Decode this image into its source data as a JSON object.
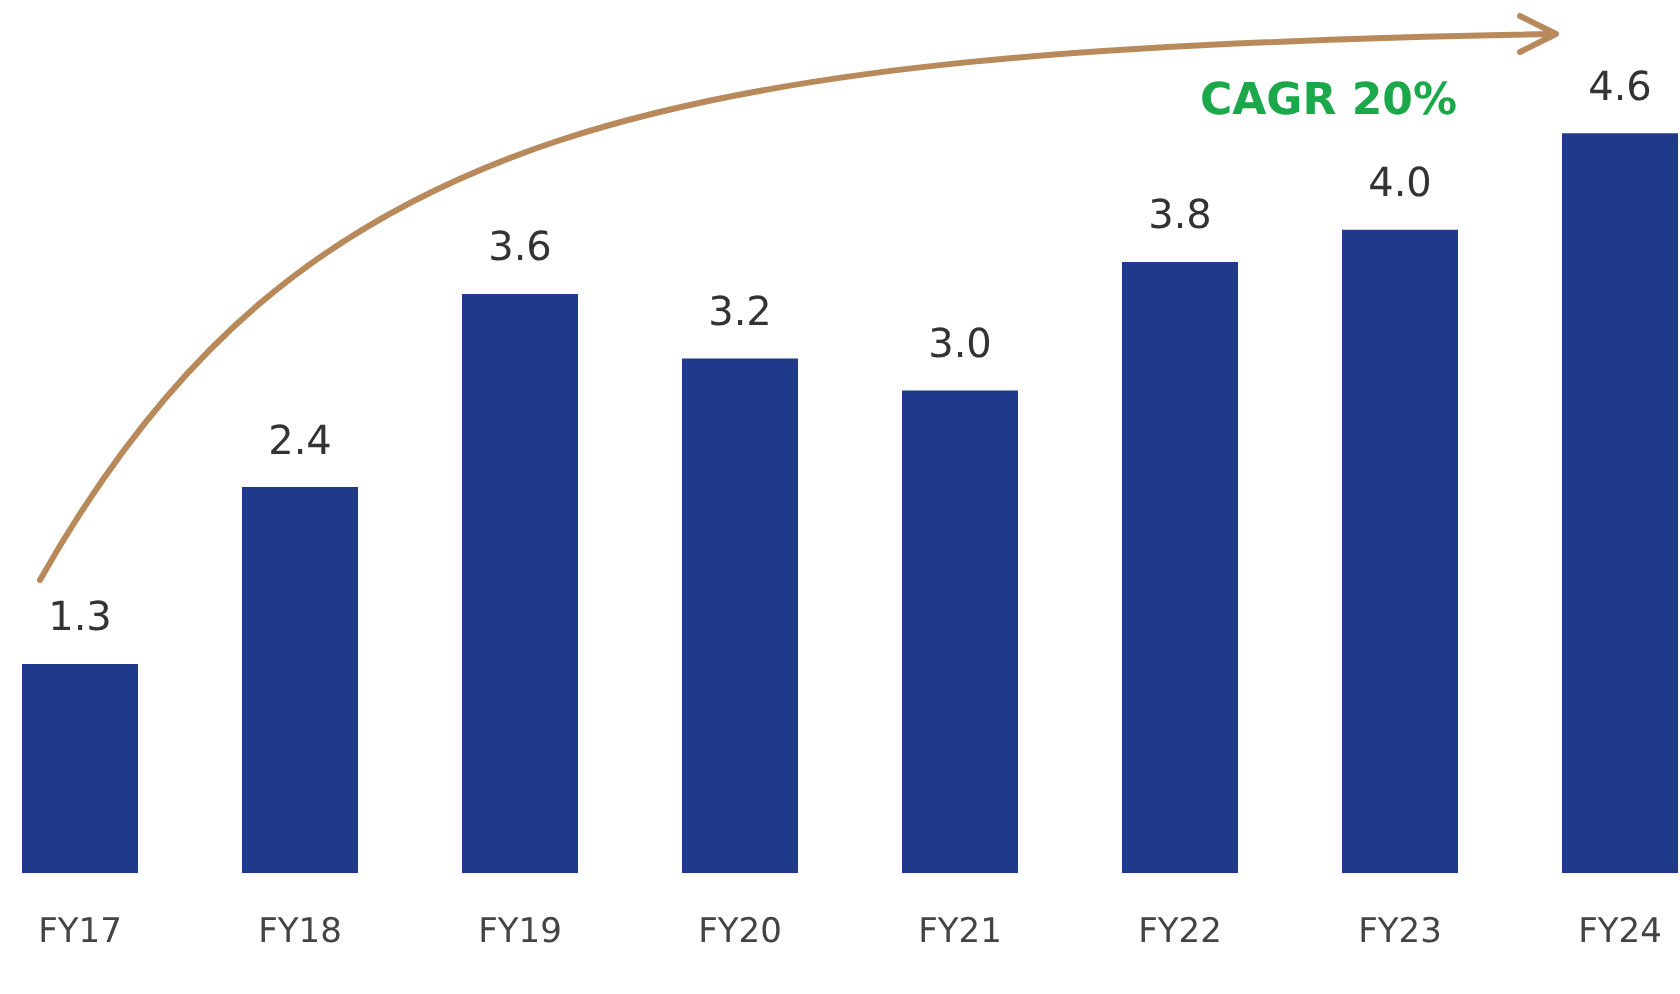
{
  "chart_data": {
    "type": "bar",
    "categories": [
      "FY17",
      "FY18",
      "FY19",
      "FY20",
      "FY21",
      "FY22",
      "FY23",
      "FY24"
    ],
    "values": [
      1.3,
      2.4,
      3.6,
      3.2,
      3.0,
      3.8,
      4.0,
      4.6
    ],
    "color": "#1f3a8a",
    "value_labels": [
      "1.3",
      "2.4",
      "3.6",
      "3.2",
      "3.0",
      "3.8",
      "4.0",
      "4.6"
    ],
    "legend": false,
    "grid": false,
    "tick_labels": "x",
    "annotations": [
      "CAGR 20%"
    ]
  }
}
